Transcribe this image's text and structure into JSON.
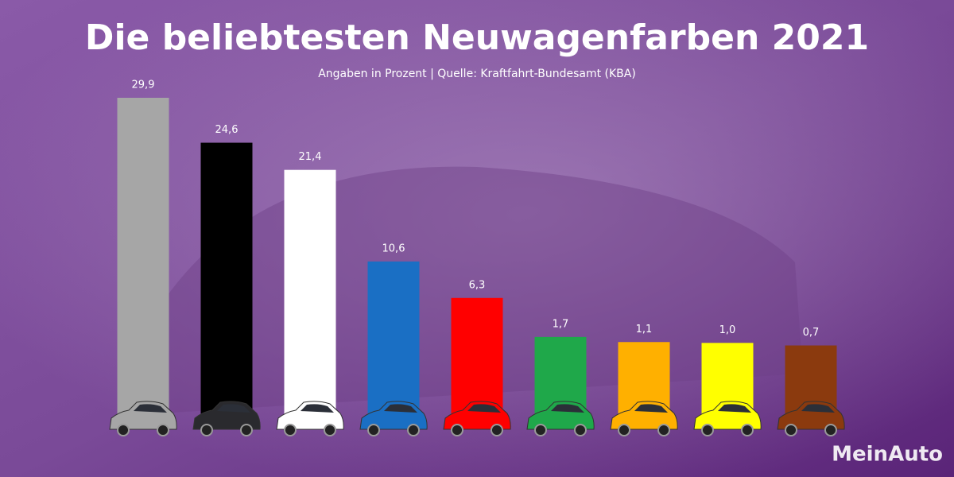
{
  "chart_data": {
    "type": "bar",
    "title": "Die beliebtesten Neuwagenfarben 2021",
    "subtitle": "Angaben in Prozent | Quelle: Kraftfahrt-Bundesamt (KBA)",
    "values": [
      29.9,
      24.6,
      21.4,
      10.6,
      6.3,
      1.7,
      1.1,
      1.0,
      0.7
    ],
    "value_labels": [
      "29,9",
      "24,6",
      "21,4",
      "10,6",
      "6,3",
      "1,7",
      "1,1",
      "1,0",
      "0,7"
    ],
    "colors": [
      "#a6a6a6",
      "#000000",
      "#ffffff",
      "#1a6fc4",
      "#ff0000",
      "#1fa84a",
      "#ffb000",
      "#ffff00",
      "#8b3a0e"
    ],
    "watermark": "MeinAuto"
  }
}
